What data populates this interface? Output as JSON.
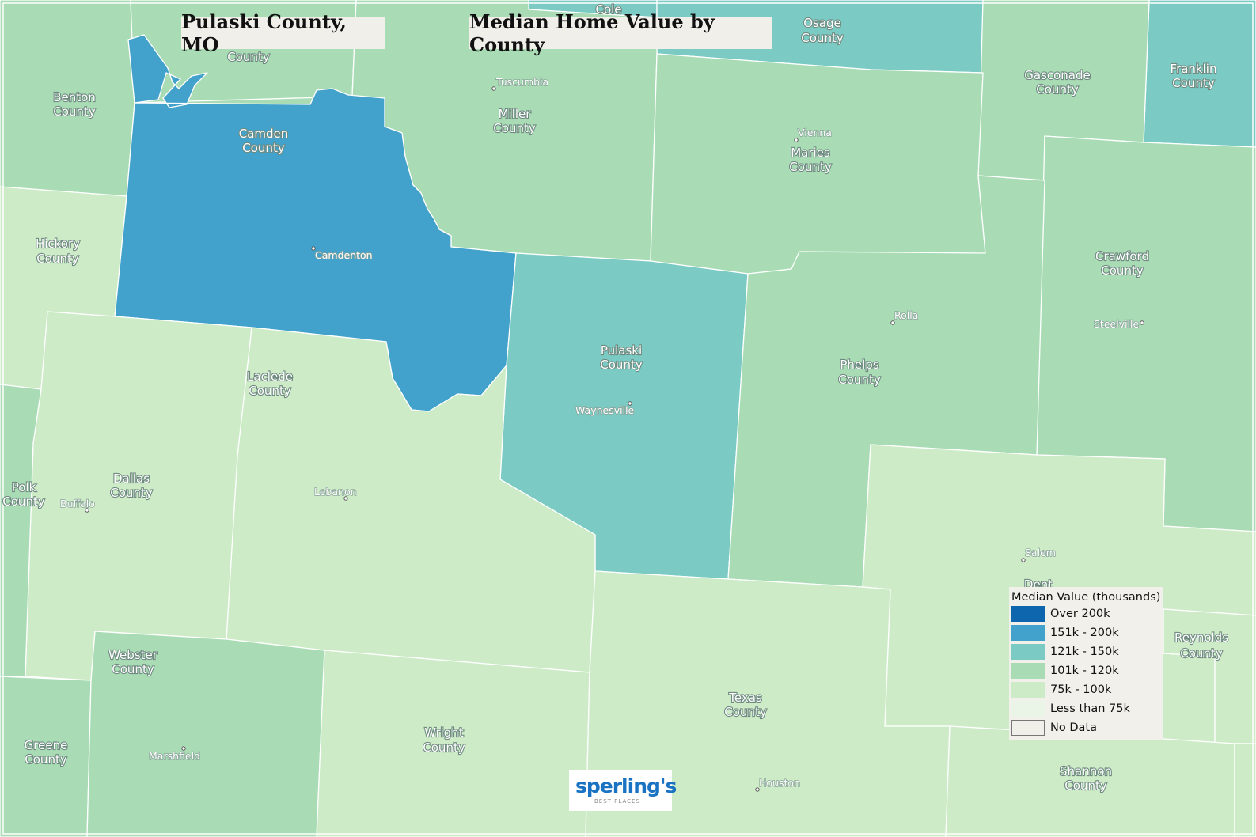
{
  "titles": {
    "place": "Pulaski County, MO",
    "map_title": "Median Home Value by County"
  },
  "colors": {
    "over_200k": "#0d66ae",
    "k151_200": "#43a2cb",
    "k121_150": "#7bcbc4",
    "k101_120": "#a9dcb5",
    "k75_100": "#ccebc6",
    "less_75k": "#ebf5e7",
    "no_data": "#f0efea",
    "border": "#ffffff"
  },
  "legend": {
    "title": "Median Value (thousands)",
    "items": [
      {
        "label": "Over 200k",
        "color": "#0d66ae"
      },
      {
        "label": "151k - 200k",
        "color": "#43a2cb"
      },
      {
        "label": "121k - 150k",
        "color": "#7bcbc4"
      },
      {
        "label": "101k - 120k",
        "color": "#a9dcb5"
      },
      {
        "label": "75k - 100k",
        "color": "#ccebc6"
      },
      {
        "label": "Less than 75k",
        "color": "#ebf5e7"
      },
      {
        "label": "No Data",
        "color": "#f0efea"
      }
    ]
  },
  "counties": {
    "benton": {
      "line1": "Benton",
      "line2": "County",
      "value_class": "101k - 120k"
    },
    "hickory": {
      "line1": "Hickory",
      "line2": "County",
      "value_class": "75k - 100k"
    },
    "polk": {
      "line1": "Polk",
      "line2": "County",
      "value_class": "101k - 120k"
    },
    "greene": {
      "line1": "Greene",
      "line2": "County",
      "value_class": "101k - 120k"
    },
    "camden": {
      "line1": "Camden",
      "line2": "County",
      "value_class": "151k - 200k"
    },
    "morgan": {
      "line2": "County",
      "value_class": "101k - 120k"
    },
    "miller": {
      "line1": "Miller",
      "line2": "County",
      "value_class": "101k - 120k"
    },
    "cole": {
      "line1": "Cole",
      "value_class": "121k - 150k"
    },
    "osage": {
      "line1": "Osage",
      "line2": "County",
      "value_class": "121k - 150k"
    },
    "maries": {
      "line1": "Maries",
      "line2": "County",
      "value_class": "101k - 120k"
    },
    "gasconade": {
      "line1": "Gasconade",
      "line2": "County",
      "value_class": "101k - 120k"
    },
    "franklin": {
      "line1": "Franklin",
      "line2": "County",
      "value_class": "121k - 150k"
    },
    "crawford": {
      "line1": "Crawford",
      "line2": "County",
      "value_class": "101k - 120k"
    },
    "phelps": {
      "line1": "Phelps",
      "line2": "County",
      "value_class": "101k - 120k"
    },
    "pulaski": {
      "line1": "Pulaski",
      "line2": "County",
      "value_class": "121k - 150k"
    },
    "laclede": {
      "line1": "Laclede",
      "line2": "County",
      "value_class": "75k - 100k"
    },
    "dallas": {
      "line1": "Dallas",
      "line2": "County",
      "value_class": "75k - 100k"
    },
    "webster": {
      "line1": "Webster",
      "line2": "County",
      "value_class": "101k - 120k"
    },
    "wright": {
      "line1": "Wright",
      "line2": "County",
      "value_class": "75k - 100k"
    },
    "texas": {
      "line1": "Texas",
      "line2": "County",
      "value_class": "75k - 100k"
    },
    "dent": {
      "line1": "Dent",
      "value_class": "75k - 100k"
    },
    "reynolds": {
      "line1": "Reynolds",
      "line2": "County",
      "value_class": "75k - 100k"
    },
    "shannon": {
      "line1": "Shannon",
      "line2": "County",
      "value_class": "75k - 100k"
    }
  },
  "cities": {
    "tuscumbia": "Tuscumbia",
    "vienna": "Vienna",
    "camdenton": "Camdenton",
    "rolla": "Rolla",
    "steelville": "Steelville",
    "waynesville": "Waynesville",
    "lebanon": "Lebanon",
    "buffalo": "Buffalo",
    "salem": "Salem",
    "marshfield": "Marshfield",
    "houston": "Houston"
  },
  "logo": {
    "name": "sperling's",
    "tagline": "BEST PLACES"
  }
}
